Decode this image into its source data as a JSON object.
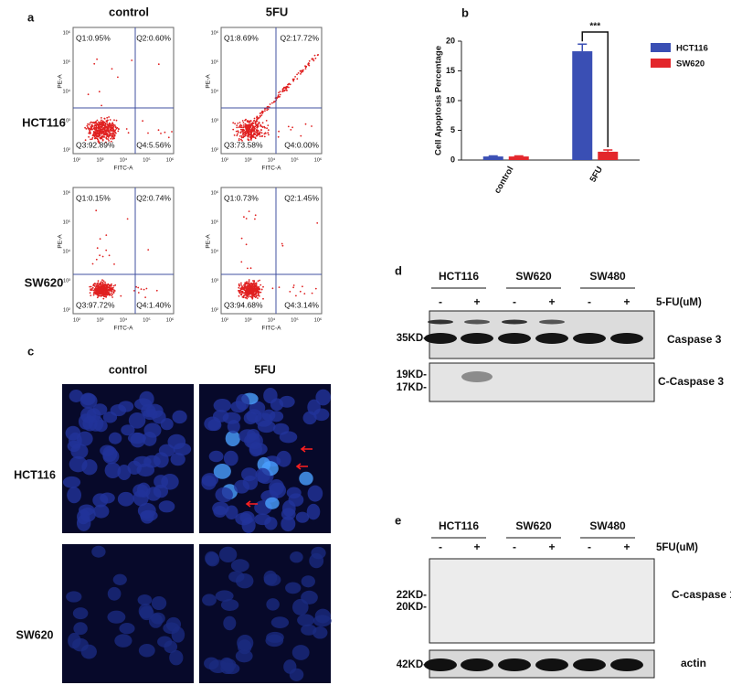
{
  "flow": {
    "label": "a",
    "columns": [
      "control",
      "5FU"
    ],
    "rows": [
      "HCT116",
      "SW620"
    ],
    "x_axis": "FITC-A",
    "y_axis": "PE-A",
    "ticks": [
      "10²",
      "10³",
      "10⁴",
      "10⁵",
      "10⁶"
    ],
    "plots": [
      {
        "quadrants": [
          "Q1:0.95%",
          "Q2:0.60%",
          "Q3:92.89%",
          "Q4:5.56%"
        ]
      },
      {
        "quadrants": [
          "Q1:8.69%",
          "Q2:17.72%",
          "Q3:73.58%",
          "Q4:0.00%"
        ]
      },
      {
        "quadrants": [
          "Q1:0.15%",
          "Q2:0.74%",
          "Q3:97.72%",
          "Q4:1.40%"
        ]
      },
      {
        "quadrants": [
          "Q1:0.73%",
          "Q2:1.45%",
          "Q3:94.68%",
          "Q4:3.14%"
        ]
      }
    ]
  },
  "chart_data": {
    "type": "bar",
    "panel_label": "b",
    "y_label": "Cell Apoptosis Percentage",
    "categories": [
      "control",
      "5FU"
    ],
    "series": [
      {
        "name": "HCT116",
        "color": "#3a4fb4",
        "values": [
          0.6,
          18.3
        ],
        "errors": [
          0.1,
          1.2
        ]
      },
      {
        "name": "SW620",
        "color": "#e3262b",
        "values": [
          0.6,
          1.4
        ],
        "errors": [
          0.1,
          0.3
        ]
      }
    ],
    "ylim": [
      0,
      20
    ],
    "yticks": [
      0,
      5,
      10,
      15,
      20
    ],
    "annotation": "***"
  },
  "microscopy": {
    "label": "c",
    "columns": [
      "control",
      "5FU"
    ],
    "rows": [
      "HCT116",
      "SW620"
    ]
  },
  "blot_d": {
    "label": "d",
    "groups": [
      "HCT116",
      "SW620",
      "SW480"
    ],
    "signs": [
      "-",
      "+",
      "-",
      "+",
      "-",
      "+"
    ],
    "treatment": "5-FU(uM)",
    "markers": [
      "35KD-",
      "19KD-",
      "17KD-"
    ],
    "bands": [
      "Caspase 3",
      "C-Caspase 3"
    ]
  },
  "blot_e": {
    "label": "e",
    "groups": [
      "HCT116",
      "SW620",
      "SW480"
    ],
    "signs": [
      "-",
      "+",
      "-",
      "+",
      "-",
      "+"
    ],
    "treatment": "5FU(uM)",
    "markers": [
      "22KD-",
      "20KD-",
      "42KD-"
    ],
    "bands": [
      "C-caspase 1",
      "actin"
    ]
  }
}
